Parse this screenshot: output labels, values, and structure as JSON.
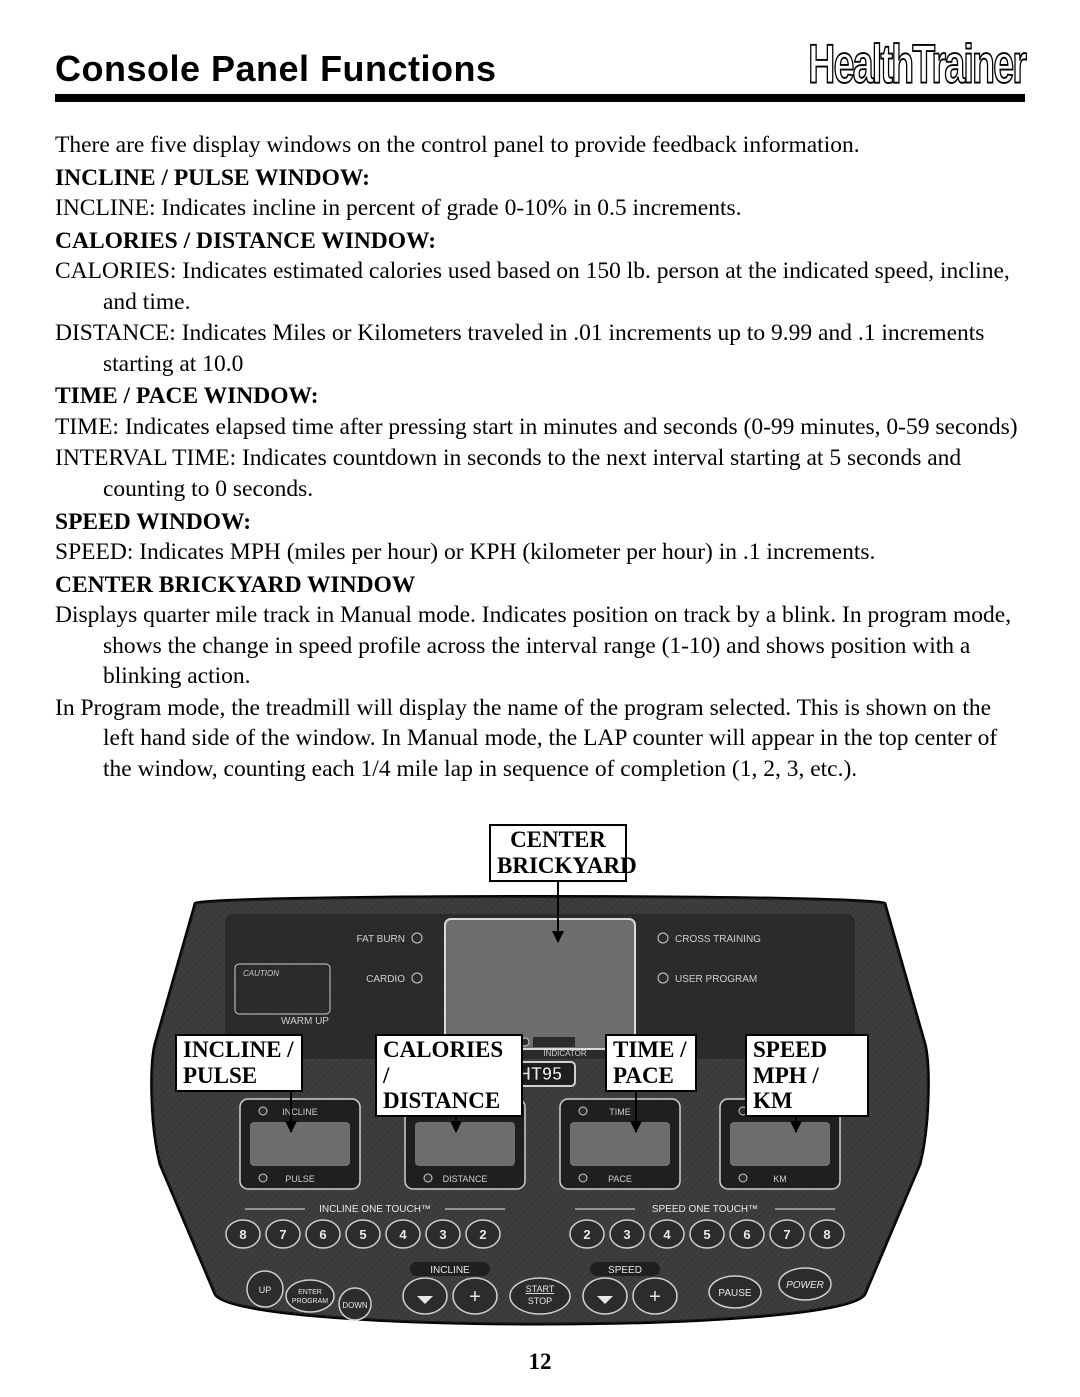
{
  "header": {
    "title": "Console Panel Functions",
    "brand": "HealthTrainer"
  },
  "intro": "There are five display windows on the control panel to provide feedback information.",
  "sections": {
    "incline_pulse": {
      "heading": "INCLINE / PULSE WINDOW:",
      "line1": "INCLINE: Indicates incline in percent of grade 0-10% in 0.5 increments."
    },
    "calories_distance": {
      "heading": "CALORIES / DISTANCE WINDOW:",
      "line1": "CALORIES: Indicates estimated calories used based on 150 lb. person at the indicated speed, incline, and time.",
      "line2": "DISTANCE: Indicates Miles or Kilometers traveled in .01 increments up to 9.99 and .1 increments starting at 10.0"
    },
    "time_pace": {
      "heading": "TIME / PACE WINDOW:",
      "line1": "TIME: Indicates elapsed time after pressing start in minutes and seconds (0-99 minutes, 0-59 seconds)",
      "line2": "INTERVAL TIME: Indicates countdown in seconds to the next interval starting at 5 seconds and counting to 0 seconds."
    },
    "speed": {
      "heading": "SPEED WINDOW:",
      "line1": "SPEED: Indicates MPH (miles per hour) or KPH (kilometer per hour) in .1 increments."
    },
    "center_brickyard": {
      "heading": "CENTER BRICKYARD WINDOW",
      "line1": "Displays quarter mile track in Manual mode. Indicates position on track by a blink. In program mode, shows the change in speed profile across the interval range (1-10) and shows position with a blinking action.",
      "line2": "In Program mode, the treadmill will display the name of the program selected. This is shown on the left hand side of the window. In Manual mode, the LAP counter will appear in the top center of the window, counting each 1/4 mile lap in sequence of completion (1, 2, 3, etc.)."
    }
  },
  "callouts": {
    "center": {
      "line1": "CENTER",
      "line2": "BRICKYARD"
    },
    "incline": {
      "line1": "INCLINE /",
      "line2": "PULSE"
    },
    "calories": {
      "line1": "CALORIES /",
      "line2": "DISTANCE"
    },
    "time": {
      "line1": "TIME /",
      "line2": "PACE"
    },
    "speed": {
      "line1": "SPEED",
      "line2": "MPH / KM"
    }
  },
  "panel": {
    "model": "HT95",
    "labels": {
      "fat_burn": "FAT BURN",
      "cardio": "CARDIO",
      "warm_up": "WARM UP",
      "cross_training": "CROSS TRAINING",
      "user_program": "USER PROGRAM",
      "caution": "CAUTION",
      "indicator": "INDICATOR",
      "incline_one_touch": "INCLINE ONE TOUCH™",
      "speed_one_touch": "SPEED ONE TOUCH™",
      "incline_btn": "INCLINE",
      "speed_btn": "SPEED",
      "up": "UP",
      "down": "DOWN",
      "enter_program": "ENTER PROGRAM",
      "start_stop_top": "START",
      "start_stop_bot": "STOP",
      "pause": "PAUSE",
      "power": "POWER"
    },
    "window_labels": {
      "w1_top": "INCLINE",
      "w1_bot": "PULSE",
      "w2_top": "CALORIES",
      "w2_bot": "DISTANCE",
      "w3_top": "TIME",
      "w3_bot": "PACE",
      "w4_top": "MPH",
      "w4_bot": "KM"
    },
    "one_touch_left": [
      "8",
      "7",
      "6",
      "5",
      "4",
      "3",
      "2"
    ],
    "one_touch_right": [
      "2",
      "3",
      "4",
      "5",
      "6",
      "7",
      "8"
    ],
    "colors": {
      "panel_bg": "#3a3a3a",
      "panel_dark": "#1f1f1f",
      "screen_bg": "#6d6d6d",
      "text_light": "#cfcfcf",
      "button_fill": "#2c2c2c",
      "button_text": "#e8e8e8",
      "outline": "#d9d9d9"
    }
  },
  "page_number": "12"
}
